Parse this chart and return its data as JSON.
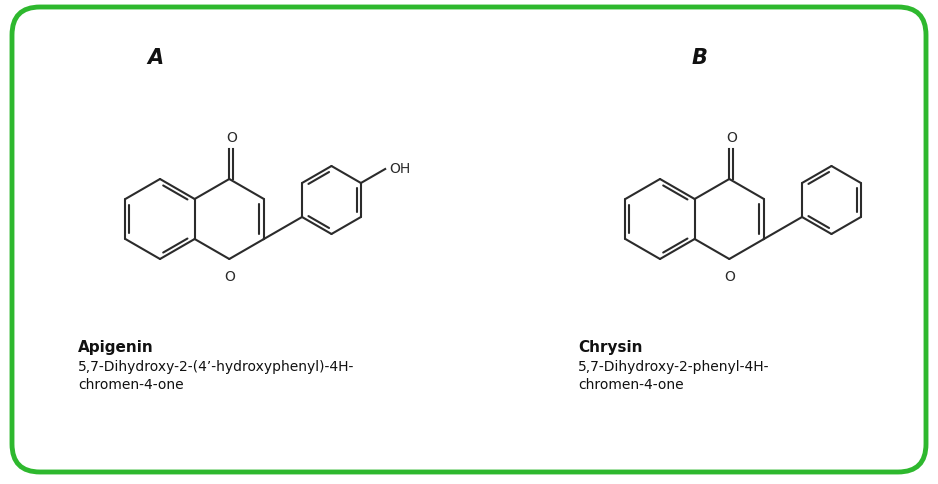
{
  "background_color": "#ffffff",
  "border_color": "#2eb82e",
  "border_linewidth": 3.5,
  "label_A": "A",
  "label_B": "B",
  "label_fontsize": 15,
  "name_A": "Apigenin",
  "iupac_A_line1": "5,7-Dihydroxy-2-(4’-hydroxyphenyl)-4H-",
  "iupac_A_line2": "chromen-4-one",
  "name_B": "Chrysin",
  "iupac_B_line1": "5,7-Dihydroxy-2-phenyl-4H-",
  "iupac_B_line2": "chromen-4-one",
  "name_fontsize": 11,
  "iupac_fontsize": 10,
  "struct_color": "#2b2b2b",
  "struct_linewidth": 1.5,
  "figsize": [
    9.38,
    4.85
  ],
  "dpi": 100
}
